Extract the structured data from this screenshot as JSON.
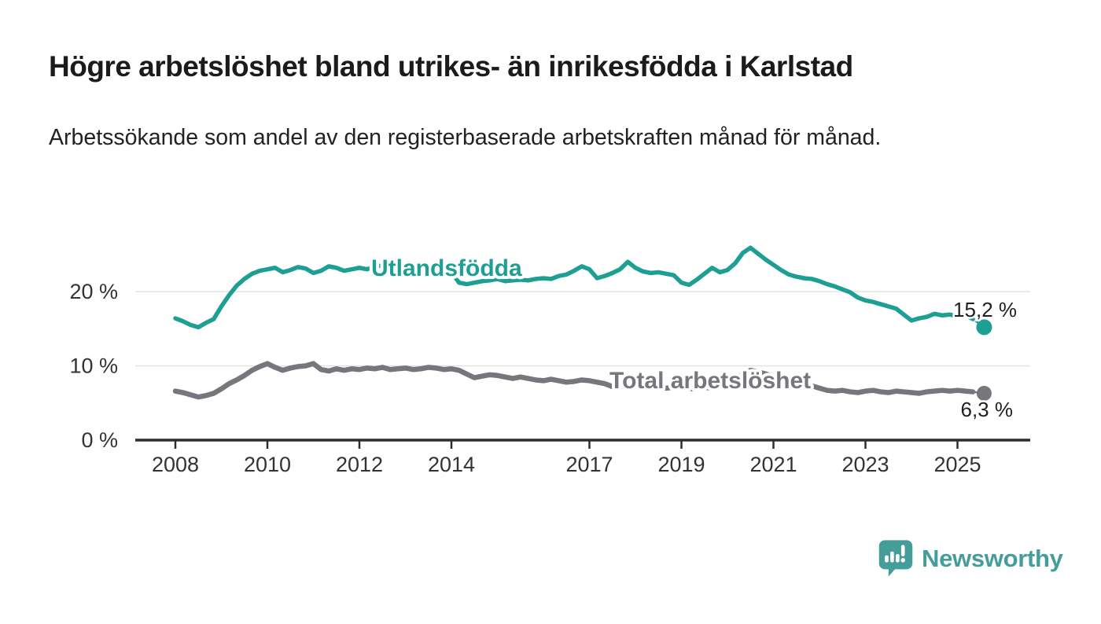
{
  "header": {
    "title": "Högre arbetslöshet bland utrikes- än inrikesfödda i Karlstad",
    "subtitle": "Arbetssökande som andel av den registerbaserade arbetskraften månad för månad."
  },
  "chart_data": {
    "type": "line",
    "unit": "%",
    "x_axis": {
      "ticks": [
        {
          "value": 2008,
          "label": "2008"
        },
        {
          "value": 2010,
          "label": "2010"
        },
        {
          "value": 2012,
          "label": "2012"
        },
        {
          "value": 2014,
          "label": "2014"
        },
        {
          "value": 2017,
          "label": "2017"
        },
        {
          "value": 2019,
          "label": "2019"
        },
        {
          "value": 2021,
          "label": "2021"
        },
        {
          "value": 2023,
          "label": "2023"
        },
        {
          "value": 2025,
          "label": "2025"
        }
      ]
    },
    "y_axis": {
      "ticks": [
        {
          "value": 0,
          "label": "0 %"
        },
        {
          "value": 10,
          "label": "10 %"
        },
        {
          "value": 20,
          "label": "20 %"
        }
      ],
      "gridlines": true,
      "range": [
        0,
        27
      ]
    },
    "series": [
      {
        "id": "utlandsfodda",
        "name": "Utlandsfödda",
        "color": "#1d9f93",
        "start_year": 2008,
        "step_months": 2,
        "values": [
          16.4,
          16.0,
          15.5,
          15.2,
          15.8,
          16.3,
          18.0,
          19.5,
          20.8,
          21.7,
          22.4,
          22.8,
          23.0,
          23.2,
          22.6,
          22.9,
          23.3,
          23.1,
          22.5,
          22.8,
          23.4,
          23.2,
          22.8,
          23.0,
          23.2,
          23.0,
          23.4,
          23.5,
          23.1,
          22.7,
          22.8,
          23.2,
          22.9,
          23.0,
          23.1,
          22.9,
          22.6,
          21.2,
          21.0,
          21.2,
          21.4,
          21.5,
          21.7,
          21.4,
          21.5,
          21.6,
          21.5,
          21.7,
          21.8,
          21.7,
          22.1,
          22.3,
          22.8,
          23.4,
          23.0,
          21.8,
          22.1,
          22.5,
          23.0,
          24.0,
          23.2,
          22.7,
          22.5,
          22.6,
          22.4,
          22.2,
          21.2,
          20.9,
          21.6,
          22.4,
          23.2,
          22.6,
          22.9,
          23.8,
          25.2,
          25.9,
          25.1,
          24.3,
          23.6,
          22.9,
          22.3,
          22.0,
          21.8,
          21.7,
          21.4,
          21.0,
          20.7,
          20.3,
          19.9,
          19.2,
          18.8,
          18.6,
          18.3,
          18.0,
          17.7,
          16.9,
          16.1,
          16.4,
          16.6,
          17.0,
          16.8,
          16.9,
          16.7,
          16.9,
          16.3
        ],
        "end_point": {
          "year": 2025.58,
          "value": 15.2,
          "label": "15,2 %"
        }
      },
      {
        "id": "total-arbetsloshet",
        "name": "Total arbetslöshet",
        "color": "#76767c",
        "start_year": 2008,
        "step_months": 2,
        "values": [
          6.6,
          6.4,
          6.1,
          5.8,
          6.0,
          6.3,
          6.9,
          7.6,
          8.1,
          8.7,
          9.4,
          9.9,
          10.3,
          9.8,
          9.4,
          9.7,
          9.9,
          10.0,
          10.3,
          9.5,
          9.3,
          9.6,
          9.4,
          9.6,
          9.5,
          9.7,
          9.6,
          9.8,
          9.5,
          9.6,
          9.7,
          9.5,
          9.6,
          9.8,
          9.7,
          9.5,
          9.6,
          9.4,
          8.9,
          8.4,
          8.6,
          8.8,
          8.7,
          8.5,
          8.3,
          8.5,
          8.3,
          8.1,
          8.0,
          8.2,
          8.0,
          7.8,
          7.9,
          8.1,
          8.0,
          7.8,
          7.6,
          7.2,
          7.3,
          7.4,
          7.3,
          7.2,
          7.3,
          7.1,
          7.0,
          7.1,
          7.0,
          6.9,
          7.0,
          7.1,
          7.0,
          7.2,
          7.4,
          8.0,
          8.9,
          9.4,
          9.2,
          8.9,
          8.6,
          8.3,
          8.0,
          7.8,
          7.6,
          7.3,
          7.0,
          6.7,
          6.6,
          6.7,
          6.5,
          6.4,
          6.6,
          6.7,
          6.5,
          6.4,
          6.6,
          6.5,
          6.4,
          6.3,
          6.5,
          6.6,
          6.7,
          6.6,
          6.7,
          6.6,
          6.5
        ],
        "end_point": {
          "year": 2025.58,
          "value": 6.3,
          "label": "6,3 %"
        }
      }
    ]
  },
  "footer": {
    "brand": "Newsworthy",
    "brand_color": "#459d9b",
    "logo_icon": "bar-chart-speech-bubble"
  }
}
